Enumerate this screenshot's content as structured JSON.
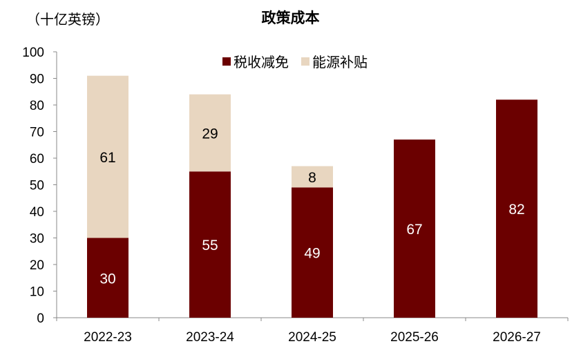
{
  "chart_data": {
    "type": "bar",
    "stacked": true,
    "title": "政策成本",
    "unit_label": "（十亿英镑）",
    "categories": [
      "2022-23",
      "2023-24",
      "2024-25",
      "2025-26",
      "2026-27"
    ],
    "series": [
      {
        "name": "税收减免",
        "color": "#6B0000",
        "label_color": "#ffffff",
        "values": [
          30,
          55,
          49,
          67,
          82
        ]
      },
      {
        "name": "能源补贴",
        "color": "#E8D6C0",
        "label_color": "#000000",
        "values": [
          61,
          29,
          8,
          null,
          null
        ]
      }
    ],
    "ylim": [
      0,
      100
    ],
    "yticks": [
      0,
      10,
      20,
      30,
      40,
      50,
      60,
      70,
      80,
      90,
      100
    ],
    "legend_position": "top-center",
    "grid": false
  }
}
